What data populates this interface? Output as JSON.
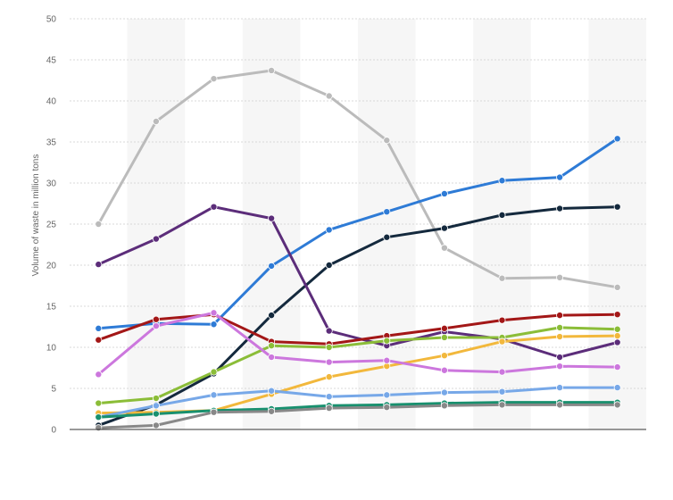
{
  "chart_data": {
    "type": "line",
    "title": "",
    "xlabel": "",
    "ylabel": "Volume of waste in million tons",
    "ylim": [
      0,
      50
    ],
    "yticks": [
      0,
      5,
      10,
      15,
      20,
      25,
      30,
      35,
      40,
      45,
      50
    ],
    "x": [
      1,
      2,
      3,
      4,
      5,
      6,
      7,
      8,
      9,
      10
    ],
    "grid": "horizontal dashed",
    "legend": "none",
    "series": [
      {
        "color": "#bbbbbb",
        "values": [
          25.0,
          37.5,
          42.7,
          43.7,
          40.6,
          35.2,
          22.1,
          18.4,
          18.5,
          17.3
        ]
      },
      {
        "color": "#2e7bd6",
        "values": [
          12.3,
          12.9,
          12.8,
          19.9,
          24.3,
          26.5,
          28.7,
          30.3,
          30.7,
          35.4
        ]
      },
      {
        "color": "#14293d",
        "values": [
          0.5,
          3.0,
          6.8,
          13.9,
          20.0,
          23.4,
          24.5,
          26.1,
          26.9,
          27.1
        ]
      },
      {
        "color": "#5c2d7a",
        "values": [
          20.1,
          23.2,
          27.1,
          25.7,
          12.0,
          10.2,
          11.9,
          11.0,
          8.8,
          10.6
        ]
      },
      {
        "color": "#a31717",
        "values": [
          10.9,
          13.4,
          14.0,
          10.7,
          10.4,
          11.4,
          12.3,
          13.3,
          13.9,
          14.0
        ]
      },
      {
        "color": "#8bbd38",
        "values": [
          3.2,
          3.8,
          7.0,
          10.2,
          10.0,
          10.8,
          11.2,
          11.2,
          12.4,
          12.2
        ]
      },
      {
        "color": "#f2b83c",
        "values": [
          2.0,
          2.1,
          2.3,
          4.3,
          6.4,
          7.7,
          9.0,
          10.7,
          11.3,
          11.4
        ]
      },
      {
        "color": "#cc77dd",
        "values": [
          6.7,
          12.6,
          14.2,
          8.8,
          8.2,
          8.4,
          7.2,
          7.0,
          7.7,
          7.6
        ]
      },
      {
        "color": "#77a8e8",
        "values": [
          1.5,
          2.9,
          4.2,
          4.7,
          4.0,
          4.2,
          4.5,
          4.6,
          5.1,
          5.1
        ]
      },
      {
        "color": "#18906e",
        "values": [
          1.5,
          1.9,
          2.3,
          2.5,
          2.9,
          3.0,
          3.2,
          3.3,
          3.3,
          3.3
        ]
      },
      {
        "color": "#888888",
        "values": [
          0.2,
          0.5,
          2.1,
          2.2,
          2.6,
          2.7,
          2.9,
          3.0,
          3.0,
          3.0
        ]
      }
    ]
  }
}
